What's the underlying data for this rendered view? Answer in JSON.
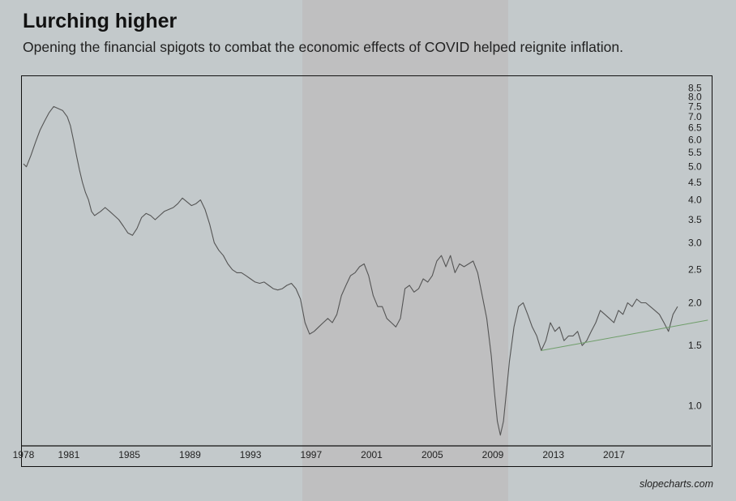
{
  "title": "Lurching higher",
  "subtitle": "Opening the financial spigots to combat the economic effects of COVID helped reignite inflation.",
  "source": "slopecharts.com",
  "colors": {
    "background": "#c3c9cb",
    "shaded_band": "#bfbfc0",
    "line": "#555555",
    "trendline": "#6f9e6a"
  },
  "chart_data": {
    "type": "line",
    "title": "Lurching higher",
    "subtitle": "Opening the financial spigots to combat the economic effects of COVID helped reignite inflation.",
    "xlabel": "",
    "ylabel": "",
    "y_scale": "log",
    "ylim": [
      0.78,
      9.2
    ],
    "xlim": [
      1977.9,
      2023.4
    ],
    "x_ticks": [
      "1978",
      "1981",
      "1985",
      "1989",
      "1993",
      "1997",
      "2001",
      "2005",
      "2009",
      "2013",
      "2017"
    ],
    "y_ticks": [
      "8.5",
      "8.0",
      "7.5",
      "7.0",
      "6.5",
      "6.0",
      "5.5",
      "5.0",
      "4.5",
      "4.0",
      "3.5",
      "3.0",
      "2.5",
      "2.0",
      "1.5",
      "1.0"
    ],
    "shaded_x_range": [
      1995.4,
      2009.5
    ],
    "grid": false,
    "legend": "none",
    "series": [
      {
        "x": [
          1978.0,
          1978.2,
          1978.5,
          1978.8,
          1979.1,
          1979.4,
          1979.7,
          1980.0,
          1980.3,
          1980.6,
          1980.9,
          1981.1,
          1981.3,
          1981.5,
          1981.7,
          1981.9,
          1982.1,
          1982.3,
          1982.5,
          1982.7,
          1982.9,
          1983.1,
          1983.4,
          1983.7,
          1984.0,
          1984.3,
          1984.6,
          1984.9,
          1985.2,
          1985.5,
          1985.8,
          1986.1,
          1986.4,
          1986.7,
          1987.0,
          1987.3,
          1987.6,
          1987.9,
          1988.2,
          1988.5,
          1988.8,
          1989.1,
          1989.4,
          1989.7,
          1990.0,
          1990.3,
          1990.6,
          1990.9,
          1991.2,
          1991.5,
          1991.8,
          1992.1,
          1992.4,
          1992.7,
          1993.0,
          1993.3,
          1993.6,
          1993.9,
          1994.2,
          1994.5,
          1994.8,
          1995.1,
          1995.4,
          1995.7,
          1996.0,
          1996.3,
          1996.6,
          1996.9,
          1997.2,
          1997.5,
          1997.8,
          1998.1,
          1998.4,
          1998.7,
          1999.0,
          1999.3,
          1999.6,
          1999.9,
          2000.2,
          2000.5,
          2000.8,
          2001.1,
          2001.4,
          2001.7,
          2002.0,
          2002.3,
          2002.6,
          2002.9,
          2003.2,
          2003.5,
          2003.8,
          2004.1,
          2004.4,
          2004.7,
          2005.0,
          2005.3,
          2005.6,
          2005.9,
          2006.2,
          2006.5,
          2006.8,
          2007.1,
          2007.4,
          2007.7,
          2008.0,
          2008.3,
          2008.6,
          2008.9,
          2009.1,
          2009.3,
          2009.5,
          2009.7,
          2009.9,
          2010.1,
          2010.4,
          2010.7,
          2011.0,
          2011.3,
          2011.6,
          2011.9,
          2012.2,
          2012.5,
          2012.8,
          2013.1,
          2013.4,
          2013.7,
          2014.0,
          2014.3,
          2014.6,
          2014.9,
          2015.2,
          2015.5,
          2015.8,
          2016.1,
          2016.4,
          2016.7,
          2017.0,
          2017.3,
          2017.6,
          2017.9,
          2018.2,
          2018.5,
          2018.8,
          2019.1,
          2019.4,
          2019.7,
          2020.0,
          2020.3,
          2020.6,
          2020.9,
          2021.2
        ],
        "y": [
          5.1,
          5.0,
          5.4,
          5.9,
          6.4,
          6.8,
          7.2,
          7.5,
          7.4,
          7.3,
          7.0,
          6.6,
          6.0,
          5.4,
          4.9,
          4.5,
          4.2,
          4.0,
          3.7,
          3.6,
          3.65,
          3.7,
          3.8,
          3.7,
          3.6,
          3.5,
          3.35,
          3.2,
          3.15,
          3.3,
          3.55,
          3.65,
          3.6,
          3.5,
          3.6,
          3.7,
          3.75,
          3.8,
          3.9,
          4.05,
          3.95,
          3.85,
          3.9,
          4.0,
          3.75,
          3.4,
          3.0,
          2.85,
          2.75,
          2.6,
          2.5,
          2.45,
          2.45,
          2.4,
          2.35,
          2.3,
          2.28,
          2.3,
          2.25,
          2.2,
          2.18,
          2.2,
          2.25,
          2.28,
          2.2,
          2.05,
          1.75,
          1.62,
          1.65,
          1.7,
          1.75,
          1.8,
          1.75,
          1.85,
          2.1,
          2.25,
          2.4,
          2.45,
          2.55,
          2.6,
          2.4,
          2.1,
          1.95,
          1.95,
          1.8,
          1.75,
          1.7,
          1.8,
          2.2,
          2.25,
          2.15,
          2.2,
          2.35,
          2.3,
          2.4,
          2.65,
          2.75,
          2.55,
          2.75,
          2.45,
          2.6,
          2.55,
          2.6,
          2.65,
          2.45,
          2.1,
          1.8,
          1.4,
          1.1,
          0.9,
          0.82,
          0.9,
          1.1,
          1.35,
          1.7,
          1.95,
          2.0,
          1.85,
          1.7,
          1.6,
          1.45,
          1.55,
          1.75,
          1.65,
          1.7,
          1.55,
          1.6,
          1.6,
          1.65,
          1.5,
          1.55,
          1.65,
          1.75,
          1.9,
          1.85,
          1.8,
          1.75,
          1.9,
          1.85,
          2.0,
          1.95,
          2.05,
          2.0,
          2.0,
          1.95,
          1.9,
          1.85,
          1.75,
          1.65,
          1.85,
          1.95
        ]
      },
      {
        "x": [
          2012.2,
          2023.2
        ],
        "y": [
          1.45,
          1.78
        ]
      }
    ]
  }
}
